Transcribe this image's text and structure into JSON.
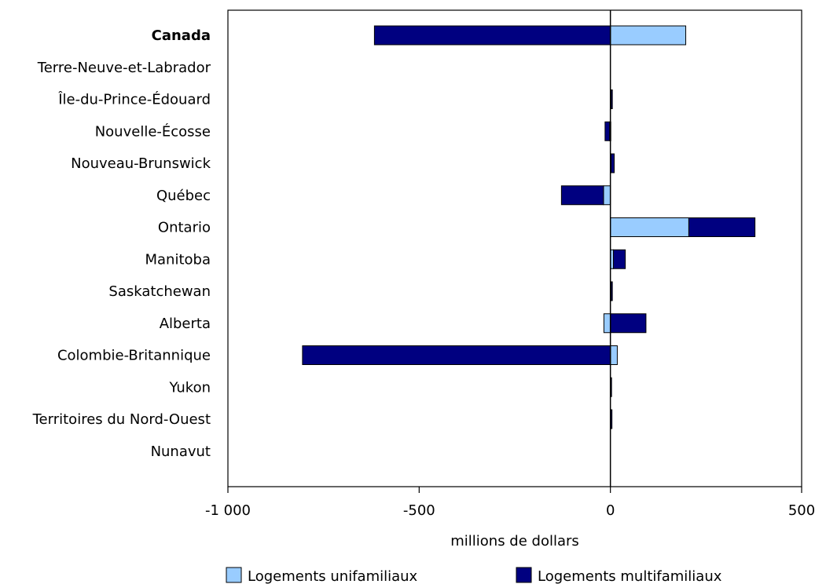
{
  "chart_data": {
    "type": "bar",
    "orientation": "horizontal",
    "stacked": true,
    "xlabel": "millions de dollars",
    "xlim": [
      -1000,
      500
    ],
    "xticks": [
      -1000,
      -500,
      0,
      500
    ],
    "xtick_labels": [
      "-1 000",
      "-500",
      "0",
      "500"
    ],
    "grid": false,
    "legend_position": "bottom",
    "categories": [
      "Canada",
      "Terre-Neuve-et-Labrador",
      "Île-du-Prince-Édouard",
      "Nouvelle-Écosse",
      "Nouveau-Brunswick",
      "Québec",
      "Ontario",
      "Manitoba",
      "Saskatchewan",
      "Alberta",
      "Colombie-Britannique",
      "Yukon",
      "Territoires du Nord-Ouest",
      "Nunavut"
    ],
    "bold_categories": [
      "Canada"
    ],
    "series": [
      {
        "name": "Logements unifamiliaux",
        "color": "#99ccff",
        "values": [
          197,
          0,
          2,
          -2,
          2,
          -18,
          205,
          8,
          2,
          -17,
          18,
          0,
          1,
          0
        ]
      },
      {
        "name": "Logements multifamiliaux",
        "color": "#000080",
        "values": [
          -617,
          0,
          1,
          -12,
          8,
          -110,
          173,
          31,
          1,
          93,
          -805,
          1,
          2,
          0
        ]
      }
    ]
  }
}
